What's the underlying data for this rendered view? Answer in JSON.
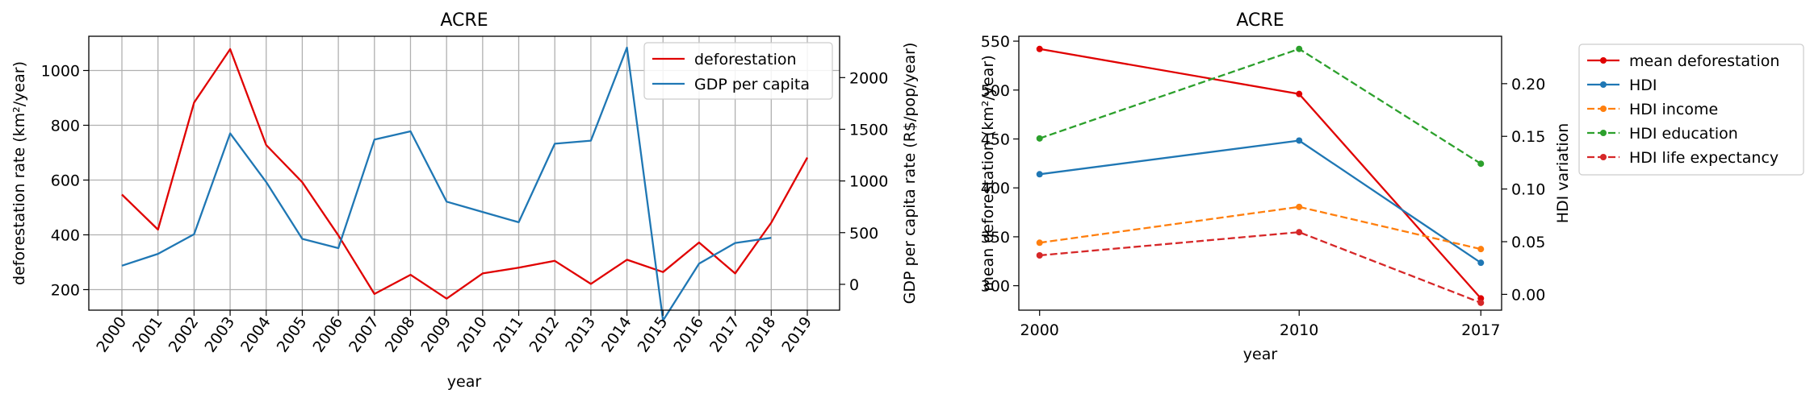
{
  "chart_data": [
    {
      "type": "line",
      "title": "ACRE",
      "xlabel": "year",
      "ylabel": "deforestation rate (km²/year)",
      "y2label": "GDP per capita rate (R$/pop/year)",
      "x": [
        "2000",
        "2001",
        "2002",
        "2003",
        "2004",
        "2005",
        "2006",
        "2007",
        "2008",
        "2009",
        "2010",
        "2011",
        "2012",
        "2013",
        "2014",
        "2015",
        "2016",
        "2017",
        "2018",
        "2019"
      ],
      "ylim": [
        125,
        1125
      ],
      "y2lim": [
        -250,
        2400
      ],
      "yticks": [
        200,
        400,
        600,
        800,
        1000
      ],
      "y2ticks": [
        0,
        500,
        1000,
        1500,
        2000
      ],
      "grid": true,
      "legend_position": "top-right",
      "series": [
        {
          "name": "deforestation",
          "axis": "left",
          "color": "#e00000",
          "values": [
            547,
            419,
            883,
            1078,
            728,
            592,
            398,
            184,
            254,
            167,
            259,
            280,
            305,
            221,
            309,
            264,
            372,
            259,
            444,
            682
          ]
        },
        {
          "name": "GDP per capita",
          "axis": "right",
          "color": "#1f77b4",
          "values": [
            180,
            295,
            485,
            1460,
            990,
            440,
            350,
            1400,
            1480,
            800,
            700,
            600,
            1360,
            1390,
            2290,
            -350,
            200,
            400,
            450,
            null
          ]
        }
      ]
    },
    {
      "type": "line",
      "title": "ACRE",
      "xlabel": "year",
      "ylabel": "mean deforestation (km²/year)",
      "y2label": "HDI variation",
      "x": [
        2000,
        2010,
        2017
      ],
      "xlim": [
        1999.2,
        2017.8
      ],
      "ylim": [
        275,
        555
      ],
      "y2lim": [
        -0.015,
        0.245
      ],
      "yticks": [
        300,
        350,
        400,
        450,
        500,
        550
      ],
      "y2ticks": [
        "0.00",
        "0.05",
        "0.10",
        "0.15",
        "0.20"
      ],
      "grid": false,
      "legend_position": "outside-right",
      "series": [
        {
          "name": "mean deforestation",
          "axis": "left",
          "color": "#e00000",
          "dashed": false,
          "values": [
            542,
            496,
            287
          ]
        },
        {
          "name": "HDI",
          "axis": "right",
          "color": "#1f77b4",
          "dashed": false,
          "values": [
            0.114,
            0.146,
            0.03
          ]
        },
        {
          "name": "HDI income",
          "axis": "right",
          "color": "#ff7f0e",
          "dashed": true,
          "values": [
            0.049,
            0.083,
            0.043
          ]
        },
        {
          "name": "HDI education",
          "axis": "right",
          "color": "#2ca02c",
          "dashed": true,
          "values": [
            0.148,
            0.233,
            0.124
          ]
        },
        {
          "name": "HDI life expectancy",
          "axis": "right",
          "color": "#d62728",
          "dashed": true,
          "values": [
            0.037,
            0.059,
            -0.008
          ]
        }
      ]
    }
  ]
}
